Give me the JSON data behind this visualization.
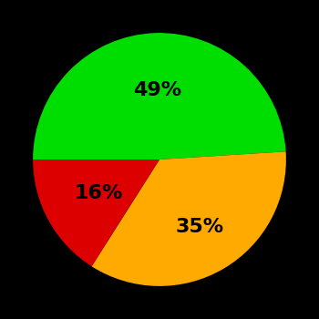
{
  "slices": [
    49,
    35,
    16
  ],
  "colors": [
    "#00dd00",
    "#ffaa00",
    "#dd0000"
  ],
  "labels": [
    "49%",
    "35%",
    "16%"
  ],
  "label_radii": [
    0.55,
    0.62,
    0.55
  ],
  "background_color": "#000000",
  "startangle": 180,
  "counterclock": false,
  "figsize": [
    3.5,
    3.5
  ],
  "dpi": 100,
  "fontsize": 16
}
